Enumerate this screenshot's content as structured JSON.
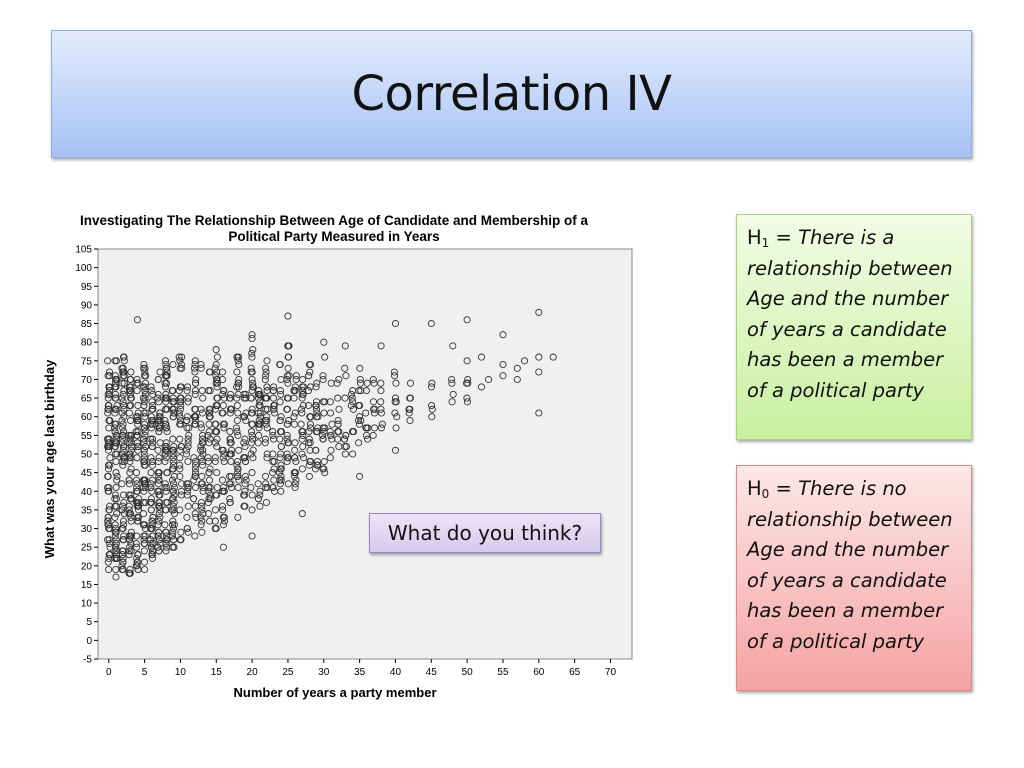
{
  "slide": {
    "title": "Correlation IV",
    "callout": "What do you think?",
    "h1": {
      "symbol": "H",
      "sub": "1",
      "equals": " = ",
      "text": "There is a relationship between Age and the number of years a candidate has been a member of a political party"
    },
    "h0": {
      "symbol": "H",
      "sub": "0",
      "equals": " = ",
      "text": "There is no relationship between Age and the number of years a candidate has been a member of a political party"
    }
  },
  "chart_data": {
    "type": "scatter",
    "title_lines": [
      "Investigating The Relationship Between Age of Candidate and Membership of a",
      "Political Party Measured in Years"
    ],
    "xlabel": "Number of years a party member",
    "ylabel": "What was your age last birthday",
    "xlim": [
      -1.5,
      73
    ],
    "ylim": [
      -5,
      105
    ],
    "xticks": [
      0,
      5,
      10,
      15,
      20,
      25,
      30,
      35,
      40,
      45,
      50,
      55,
      60,
      65,
      70
    ],
    "yticks": [
      -5,
      0,
      5,
      10,
      15,
      20,
      25,
      30,
      35,
      40,
      45,
      50,
      55,
      60,
      65,
      70,
      75,
      80,
      85,
      90,
      95,
      100,
      105
    ],
    "colors": {
      "plot_bg": "#f0f0f0",
      "marker": "#333333"
    },
    "bands": [
      {
        "x": 0,
        "ymin": 19,
        "ymax": 75
      },
      {
        "x": 1,
        "ymin": 18,
        "ymax": 76
      },
      {
        "x": 2,
        "ymin": 18,
        "ymax": 76
      },
      {
        "x": 3,
        "ymin": 18,
        "ymax": 72
      },
      {
        "x": 4,
        "ymin": 19,
        "ymax": 73
      },
      {
        "x": 5,
        "ymin": 20,
        "ymax": 76
      },
      {
        "x": 6,
        "ymin": 22,
        "ymax": 73
      },
      {
        "x": 7,
        "ymin": 22,
        "ymax": 72
      },
      {
        "x": 8,
        "ymin": 24,
        "ymax": 75
      },
      {
        "x": 9,
        "ymin": 25,
        "ymax": 74
      },
      {
        "x": 10,
        "ymin": 27,
        "ymax": 77
      },
      {
        "x": 11,
        "ymin": 28,
        "ymax": 70
      },
      {
        "x": 12,
        "ymin": 30,
        "ymax": 76
      },
      {
        "x": 13,
        "ymin": 30,
        "ymax": 74
      },
      {
        "x": 14,
        "ymin": 31,
        "ymax": 75
      },
      {
        "x": 15,
        "ymin": 30,
        "ymax": 78
      },
      {
        "x": 16,
        "ymin": 32,
        "ymax": 72
      },
      {
        "x": 17,
        "ymin": 33,
        "ymax": 72
      },
      {
        "x": 18,
        "ymin": 34,
        "ymax": 76
      },
      {
        "x": 19,
        "ymin": 35,
        "ymax": 70
      },
      {
        "x": 20,
        "ymin": 35,
        "ymax": 80
      },
      {
        "x": 21,
        "ymin": 36,
        "ymax": 72
      },
      {
        "x": 22,
        "ymin": 38,
        "ymax": 75
      },
      {
        "x": 23,
        "ymin": 40,
        "ymax": 72
      },
      {
        "x": 24,
        "ymin": 40,
        "ymax": 74
      },
      {
        "x": 25,
        "ymin": 41,
        "ymax": 79
      },
      {
        "x": 26,
        "ymin": 42,
        "ymax": 72
      },
      {
        "x": 27,
        "ymin": 43,
        "ymax": 70
      },
      {
        "x": 28,
        "ymin": 44,
        "ymax": 74
      },
      {
        "x": 29,
        "ymin": 45,
        "ymax": 70
      },
      {
        "x": 30,
        "ymin": 45,
        "ymax": 80
      },
      {
        "x": 31,
        "ymin": 47,
        "ymax": 70
      },
      {
        "x": 32,
        "ymin": 48,
        "ymax": 72
      },
      {
        "x": 33,
        "ymin": 50,
        "ymax": 73
      },
      {
        "x": 34,
        "ymin": 50,
        "ymax": 70
      },
      {
        "x": 35,
        "ymin": 50,
        "ymax": 76
      },
      {
        "x": 36,
        "ymin": 52,
        "ymax": 70
      },
      {
        "x": 37,
        "ymin": 54,
        "ymax": 72
      },
      {
        "x": 38,
        "ymin": 55,
        "ymax": 70
      },
      {
        "x": 40,
        "ymin": 55,
        "ymax": 74
      },
      {
        "x": 42,
        "ymin": 58,
        "ymax": 71
      },
      {
        "x": 45,
        "ymin": 60,
        "ymax": 70
      },
      {
        "x": 48,
        "ymin": 62,
        "ymax": 70
      },
      {
        "x": 50,
        "ymin": 62,
        "ymax": 72
      }
    ],
    "points": [
      [
        4,
        86
      ],
      [
        20,
        82
      ],
      [
        20,
        81
      ],
      [
        25,
        87
      ],
      [
        40,
        85
      ],
      [
        45,
        85
      ],
      [
        50,
        86
      ],
      [
        55,
        82
      ],
      [
        60,
        88
      ],
      [
        30,
        80
      ],
      [
        33,
        79
      ],
      [
        38,
        79
      ],
      [
        48,
        79
      ],
      [
        52,
        76
      ],
      [
        55,
        74
      ],
      [
        57,
        73
      ],
      [
        58,
        75
      ],
      [
        60,
        76
      ],
      [
        62,
        76
      ],
      [
        60,
        72
      ],
      [
        53,
        70
      ],
      [
        55,
        71
      ],
      [
        57,
        70
      ],
      [
        52,
        68
      ],
      [
        50,
        75
      ],
      [
        60,
        61
      ],
      [
        42,
        62
      ],
      [
        20,
        28
      ],
      [
        16,
        25
      ],
      [
        27,
        34
      ],
      [
        35,
        44
      ],
      [
        40,
        51
      ],
      [
        3,
        18
      ],
      [
        1,
        17
      ],
      [
        2,
        19
      ],
      [
        5,
        19
      ],
      [
        0,
        22
      ],
      [
        2,
        22
      ],
      [
        4,
        21
      ],
      [
        6,
        23
      ],
      [
        7,
        24
      ],
      [
        8,
        26
      ],
      [
        10,
        27
      ],
      [
        12,
        28
      ],
      [
        13,
        29
      ],
      [
        15,
        30
      ],
      [
        16,
        31
      ],
      [
        18,
        33
      ],
      [
        20,
        35
      ],
      [
        22,
        37
      ],
      [
        24,
        40
      ],
      [
        26,
        41
      ],
      [
        28,
        44
      ],
      [
        30,
        46
      ]
    ]
  }
}
